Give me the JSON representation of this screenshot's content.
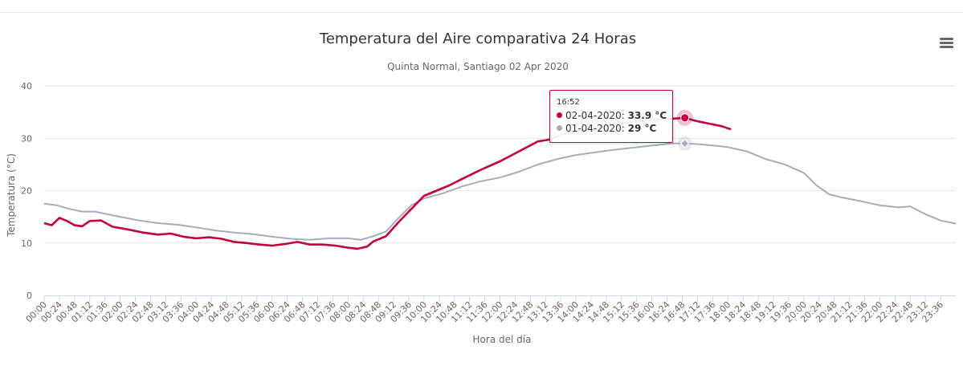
{
  "header": {
    "title": "Temperatura del Aire comparativa 24 Horas",
    "subtitle": "Quinta Normal, Santiago 02 Apr 2020"
  },
  "tooltip": {
    "time": "16:52",
    "rows": [
      {
        "label": "02-04-2020",
        "sep": ": ",
        "value": "33.9 °C",
        "color": "#c6003a"
      },
      {
        "label": "01-04-2020",
        "sep": ": ",
        "value": "29 °C",
        "color": "#a9aac0"
      }
    ]
  },
  "chart_data": {
    "type": "line",
    "title": "Temperatura del Aire comparativa 24 Horas",
    "subtitle": "Quinta Normal, Santiago 02 Apr 2020",
    "xlabel": "Hora del día",
    "ylabel": "Temperatura (°C)",
    "ylim": [
      0,
      40
    ],
    "yticks": [
      "0",
      "10",
      "20",
      "30",
      "40"
    ],
    "xlim": [
      "00:00",
      "24:00"
    ],
    "xticks": [
      "00:00",
      "00:24",
      "00:48",
      "01:12",
      "01:36",
      "02:00",
      "02:24",
      "02:48",
      "03:12",
      "03:36",
      "04:00",
      "04:24",
      "04:48",
      "05:12",
      "05:36",
      "06:00",
      "06:24",
      "06:48",
      "07:12",
      "07:36",
      "08:00",
      "08:24",
      "08:48",
      "09:12",
      "09:36",
      "10:00",
      "10:24",
      "10:48",
      "11:12",
      "11:36",
      "12:00",
      "12:24",
      "12:48",
      "13:12",
      "13:36",
      "14:00",
      "14:24",
      "14:48",
      "15:12",
      "15:36",
      "16:00",
      "16:24",
      "16:48",
      "17:12",
      "17:36",
      "18:00",
      "18:24",
      "18:48",
      "19:12",
      "19:36",
      "20:00",
      "20:24",
      "20:48",
      "21:12",
      "21:36",
      "22:00",
      "22:24",
      "22:48",
      "23:12",
      "23:36"
    ],
    "grid": true,
    "legend": "none",
    "series": [
      {
        "name": "01-04-2020",
        "color": "#a9aac0",
        "x": [
          "00:00",
          "00:20",
          "00:40",
          "01:00",
          "01:20",
          "01:40",
          "02:00",
          "02:30",
          "03:00",
          "03:30",
          "04:00",
          "04:30",
          "05:00",
          "05:30",
          "06:00",
          "06:30",
          "07:00",
          "07:30",
          "08:00",
          "08:20",
          "08:40",
          "09:00",
          "09:20",
          "09:40",
          "10:00",
          "10:30",
          "11:00",
          "11:30",
          "12:00",
          "12:30",
          "13:00",
          "13:30",
          "14:00",
          "14:30",
          "15:00",
          "15:30",
          "16:00",
          "16:30",
          "16:52",
          "17:10",
          "17:30",
          "18:00",
          "18:30",
          "19:00",
          "19:30",
          "20:00",
          "20:20",
          "20:40",
          "21:00",
          "21:30",
          "22:00",
          "22:30",
          "22:48",
          "23:12",
          "23:36",
          "24:00"
        ],
        "values": [
          17.5,
          17.2,
          16.5,
          16.0,
          16.0,
          15.5,
          15.0,
          14.3,
          13.8,
          13.5,
          13.0,
          12.4,
          12.0,
          11.7,
          11.2,
          10.8,
          10.6,
          10.9,
          10.9,
          10.6,
          11.3,
          12.2,
          14.8,
          17.2,
          18.5,
          19.5,
          20.8,
          21.8,
          22.5,
          23.6,
          25.0,
          26.0,
          26.8,
          27.3,
          27.8,
          28.2,
          28.6,
          29.0,
          29.0,
          28.9,
          28.7,
          28.3,
          27.5,
          26.0,
          25.0,
          23.4,
          21.0,
          19.3,
          18.7,
          18.0,
          17.2,
          16.8,
          17.0,
          15.5,
          14.3,
          13.7
        ]
      },
      {
        "name": "02-04-2020",
        "color": "#c6003a",
        "x": [
          "00:00",
          "00:12",
          "00:24",
          "00:36",
          "00:48",
          "01:00",
          "01:12",
          "01:30",
          "01:48",
          "02:12",
          "02:36",
          "03:00",
          "03:20",
          "03:40",
          "04:00",
          "04:20",
          "04:40",
          "05:00",
          "05:20",
          "05:40",
          "06:00",
          "06:20",
          "06:40",
          "07:00",
          "07:20",
          "07:40",
          "08:00",
          "08:15",
          "08:30",
          "08:40",
          "09:00",
          "09:20",
          "09:40",
          "10:00",
          "10:20",
          "10:40",
          "11:00",
          "11:30",
          "12:00",
          "12:30",
          "13:00",
          "13:20",
          "13:40",
          "14:00",
          "14:30",
          "15:00",
          "15:30",
          "16:00",
          "16:30",
          "16:52",
          "17:10",
          "17:30",
          "17:50",
          "18:05"
        ],
        "values": [
          13.8,
          13.4,
          14.8,
          14.2,
          13.4,
          13.2,
          14.2,
          14.3,
          13.1,
          12.6,
          12.0,
          11.6,
          11.8,
          11.2,
          10.9,
          11.1,
          10.8,
          10.2,
          10.0,
          9.7,
          9.5,
          9.8,
          10.2,
          9.7,
          9.7,
          9.5,
          9.1,
          8.9,
          9.3,
          10.3,
          11.3,
          14.0,
          16.5,
          19.0,
          20.0,
          21.0,
          22.2,
          24.0,
          25.6,
          27.5,
          29.4,
          29.8,
          30.8,
          31.2,
          32.0,
          32.6,
          33.2,
          33.5,
          33.7,
          33.9,
          33.3,
          32.8,
          32.3,
          31.7
        ]
      }
    ],
    "hover_marker": {
      "x": "16:52",
      "values": [
        33.9,
        29
      ]
    }
  }
}
